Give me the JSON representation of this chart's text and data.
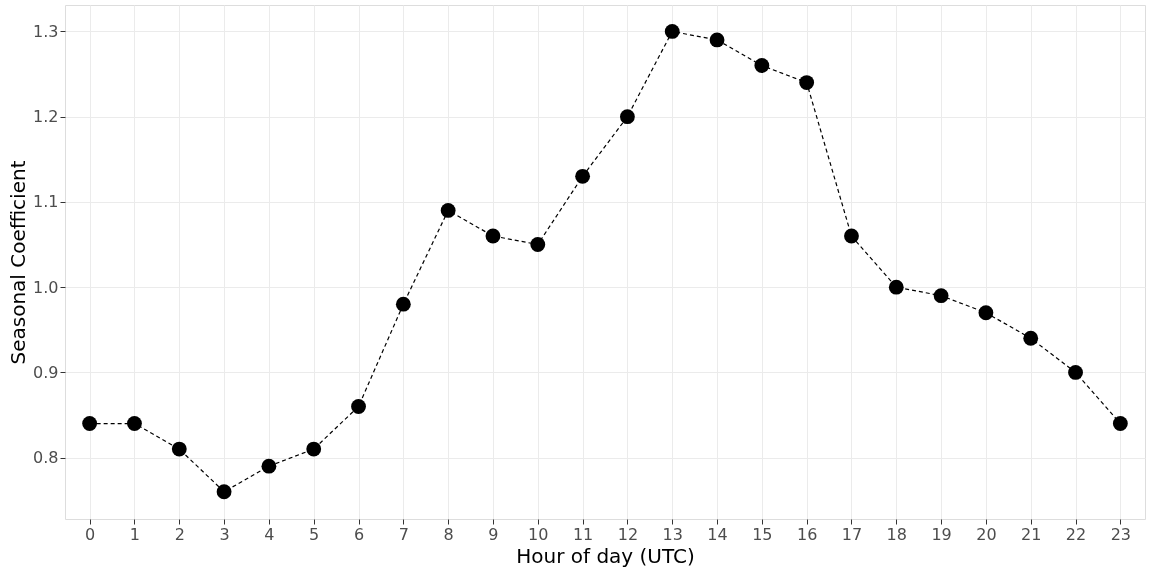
{
  "chart_data": {
    "type": "line",
    "xlabel": "Hour of day (UTC)",
    "ylabel": "Seasonal Coefficient",
    "x": [
      0,
      1,
      2,
      3,
      4,
      5,
      6,
      7,
      8,
      9,
      10,
      11,
      12,
      13,
      14,
      15,
      16,
      17,
      18,
      19,
      20,
      21,
      22,
      23
    ],
    "series": [
      {
        "color": "#000000",
        "values": [
          0.84,
          0.84,
          0.81,
          0.76,
          0.79,
          0.81,
          0.86,
          0.98,
          1.09,
          1.06,
          1.05,
          1.13,
          1.2,
          1.3,
          1.29,
          1.26,
          1.24,
          1.06,
          1.0,
          0.99,
          0.97,
          0.94,
          0.9,
          0.84
        ]
      }
    ],
    "xlim": [
      -0.55,
      23.55
    ],
    "xticks": [
      0,
      1,
      2,
      3,
      4,
      5,
      6,
      7,
      8,
      9,
      10,
      11,
      12,
      13,
      14,
      15,
      16,
      17,
      18,
      19,
      20,
      21,
      22,
      23
    ],
    "ylim": [
      0.728,
      1.331
    ],
    "yticks": [
      {
        "value": 0.8,
        "label": "0.8"
      },
      {
        "value": 0.9,
        "label": "0.9"
      },
      {
        "value": 1.0,
        "label": "1.0"
      },
      {
        "value": 1.1,
        "label": "1.1"
      },
      {
        "value": 1.2,
        "label": "1.2"
      },
      {
        "value": 1.3,
        "label": "1.3"
      }
    ],
    "grid": true,
    "marker": "circle",
    "line_style": "dashed"
  }
}
